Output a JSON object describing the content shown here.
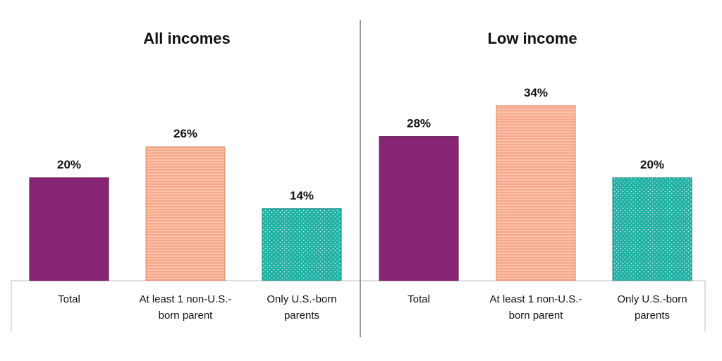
{
  "chart_data": [
    {
      "type": "bar",
      "title": "All incomes",
      "categories": [
        "Total",
        "At least 1 non-U.S.-born parent",
        "Only U.S.-born parents"
      ],
      "category_lines": [
        [
          "Total"
        ],
        [
          "At least 1 non-U.S.-",
          "born parent"
        ],
        [
          "Only U.S.-born",
          "parents"
        ]
      ],
      "values": [
        20,
        26,
        14
      ],
      "value_labels": [
        "20%",
        "26%",
        "14%"
      ],
      "ylim": [
        0,
        40
      ],
      "grid": false
    },
    {
      "type": "bar",
      "title": "Low income",
      "categories": [
        "Total",
        "At least 1 non-U.S.-born parent",
        "Only U.S.-born parents"
      ],
      "category_lines": [
        [
          "Total"
        ],
        [
          "At least 1 non-U.S.-",
          "born parent"
        ],
        [
          "Only U.S.-born",
          "parents"
        ]
      ],
      "values": [
        28,
        34,
        20
      ],
      "value_labels": [
        "28%",
        "34%",
        "20%"
      ],
      "ylim": [
        0,
        40
      ],
      "grid": false
    }
  ],
  "colors": {
    "total": "#862573",
    "non_us_born": "#f7a889",
    "non_us_born_stripe": "#ffffff",
    "us_born": "#22b2a4",
    "us_born_dot": "#ffffff",
    "divider": "#999999",
    "baseline": "#bbbbbb"
  },
  "bar_patterns": [
    "solid",
    "horizontal-stripes",
    "dots"
  ]
}
